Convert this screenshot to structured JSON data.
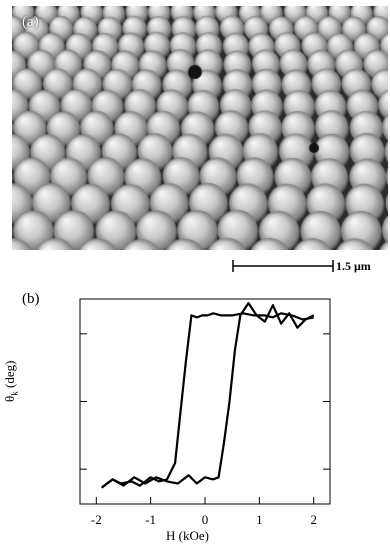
{
  "panel_a": {
    "label": "(a)",
    "scale_bar_label": "1.5 μm",
    "image_colors": {
      "background": "#2b2b2b",
      "sphere": "#c9c9c9",
      "highlight": "#f2f2f2",
      "shadow": "#5a5a5a"
    }
  },
  "panel_b": {
    "label": "(b)",
    "xlabel": "H (kOe)",
    "ylabel": "θ",
    "ylabel_sub": "k",
    "ylabel_unit": " (deg)"
  },
  "chart_data": {
    "type": "line",
    "title": "",
    "xlabel": "H (kOe)",
    "ylabel": "θk (deg)",
    "xlim": [
      -2.3,
      2.3
    ],
    "ylim": [
      0,
      1
    ],
    "x_ticks": [
      -2,
      -1,
      0,
      1,
      2
    ],
    "x_tick_labels": [
      "-2",
      "-1",
      "0",
      "1",
      "2"
    ],
    "y_ticks_unlabeled": [
      0.17,
      0.5,
      0.83
    ],
    "grid": false,
    "legend": "none",
    "series": [
      {
        "x": [
          -1.9,
          -1.7,
          -1.55,
          -1.35,
          -1.2,
          -1.0,
          -0.85,
          -0.7,
          -0.55,
          -0.45,
          -0.35,
          -0.25,
          -0.15,
          -0.05,
          0.05,
          0.15,
          0.3,
          0.5,
          0.7,
          0.9,
          1.1,
          1.25,
          1.4,
          1.6,
          1.8,
          2.0
        ],
        "y": [
          0.08,
          0.12,
          0.1,
          0.11,
          0.09,
          0.13,
          0.11,
          0.12,
          0.2,
          0.45,
          0.7,
          0.92,
          0.91,
          0.92,
          0.92,
          0.93,
          0.92,
          0.92,
          0.93,
          0.92,
          0.92,
          0.91,
          0.93,
          0.92,
          0.9,
          0.91
        ]
      },
      {
        "x": [
          2.0,
          1.85,
          1.7,
          1.55,
          1.4,
          1.25,
          1.1,
          0.95,
          0.8,
          0.65,
          0.55,
          0.45,
          0.35,
          0.25,
          0.15,
          0.0,
          -0.15,
          -0.3,
          -0.5,
          -0.7,
          -0.9,
          -1.1,
          -1.3,
          -1.5,
          -1.7,
          -1.9
        ],
        "y": [
          0.92,
          0.9,
          0.86,
          0.93,
          0.88,
          0.97,
          0.89,
          0.92,
          0.98,
          0.92,
          0.75,
          0.5,
          0.3,
          0.13,
          0.12,
          0.13,
          0.1,
          0.14,
          0.1,
          0.11,
          0.13,
          0.1,
          0.13,
          0.09,
          0.12,
          0.08
        ]
      }
    ]
  }
}
